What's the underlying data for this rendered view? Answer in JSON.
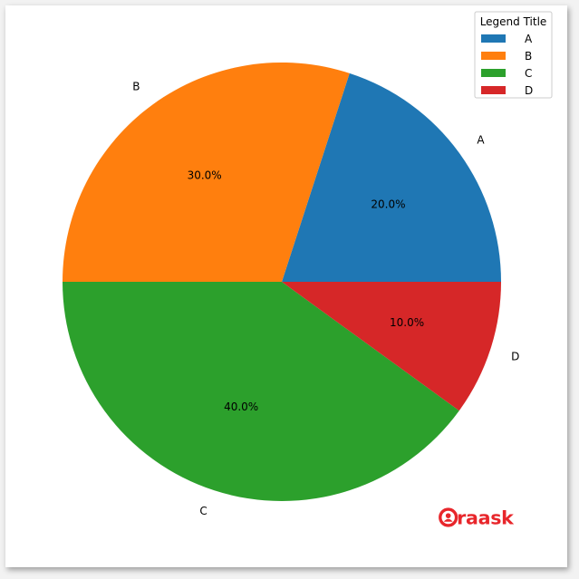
{
  "chart_data": {
    "type": "pie",
    "categories": [
      "A",
      "B",
      "C",
      "D"
    ],
    "values": [
      20,
      30,
      40,
      10
    ],
    "percent_labels": [
      "20.0%",
      "30.0%",
      "40.0%",
      "10.0%"
    ],
    "colors": [
      "#1f77b4",
      "#ff7f0e",
      "#2ca02c",
      "#d62728"
    ],
    "start_angle": 0,
    "direction": "counterclockwise",
    "legend": {
      "title": "Legend Title",
      "placement": "top-right",
      "entries": [
        "A",
        "B",
        "C",
        "D"
      ]
    }
  },
  "watermark": {
    "text": "Oraask",
    "color": "#e8262b"
  }
}
